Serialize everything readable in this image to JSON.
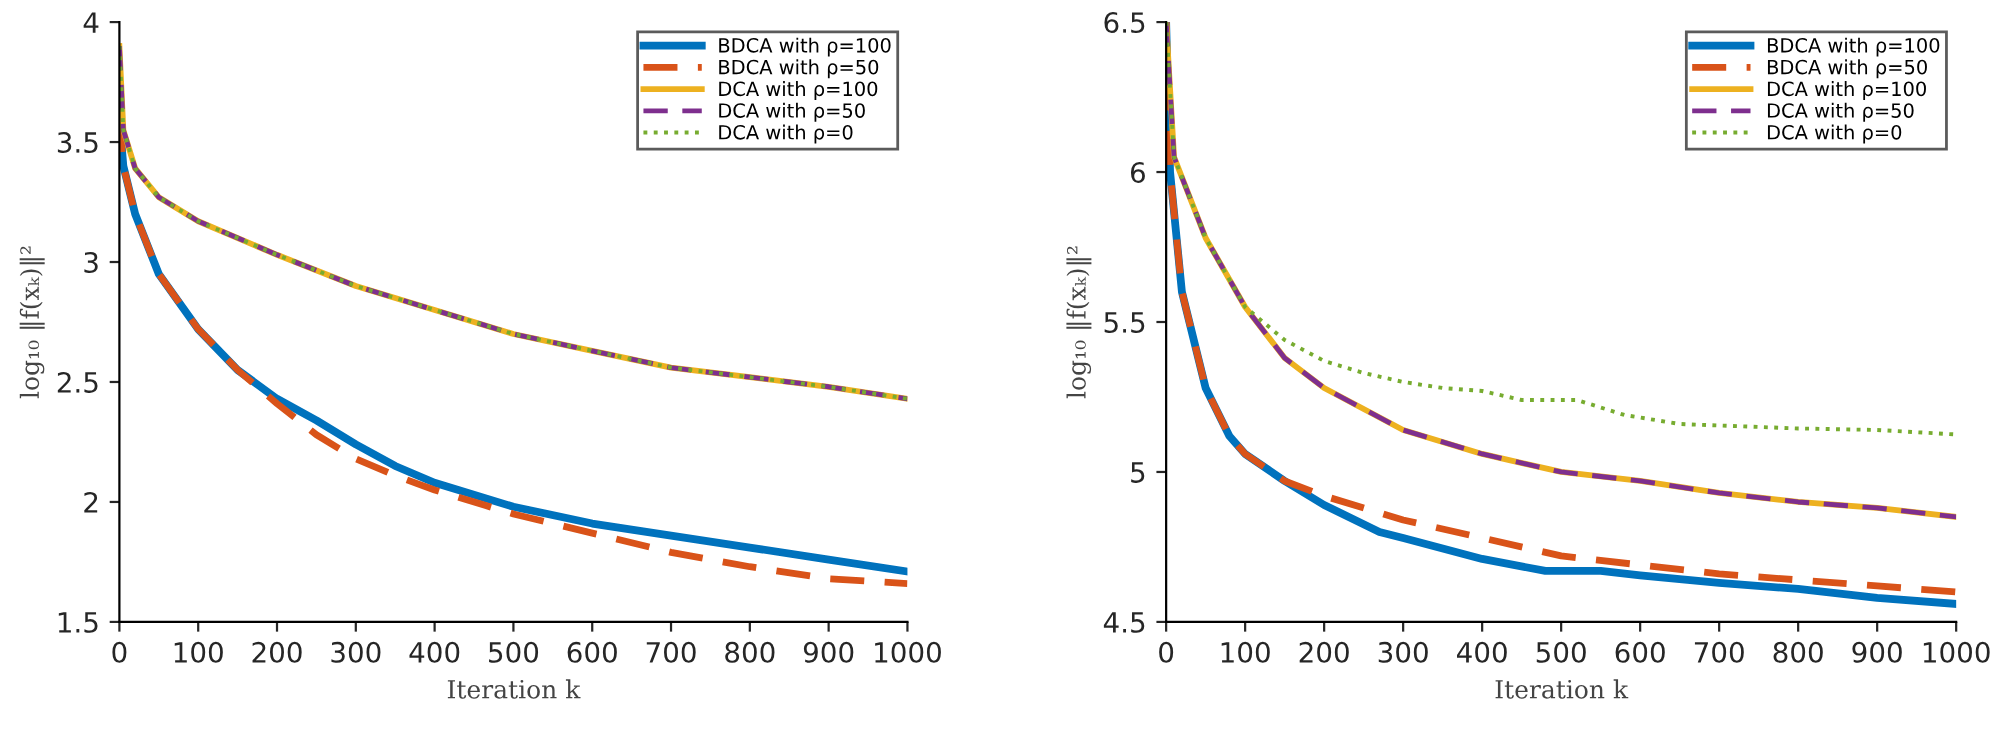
{
  "chart_data": [
    {
      "type": "line",
      "xlabel": "Iteration k",
      "ylabel": "log₁₀ ‖f(xₖ)‖²",
      "xlim": [
        0,
        1000
      ],
      "xticks": [
        0,
        100,
        200,
        300,
        400,
        500,
        600,
        700,
        800,
        900,
        1000
      ],
      "ylim": [
        1.5,
        4
      ],
      "yticks": [
        1.5,
        2,
        2.5,
        3,
        3.5,
        4
      ],
      "grid": false,
      "legend": "top right",
      "marker": "none",
      "series": [
        {
          "name": "BDCA with ρ=100",
          "color": "#0072bd",
          "line_style": "solid",
          "x": [
            0,
            5,
            20,
            50,
            100,
            150,
            200,
            250,
            300,
            350,
            400,
            500,
            600,
            700,
            800,
            900,
            1000
          ],
          "values": [
            3.6,
            3.4,
            3.2,
            2.95,
            2.72,
            2.55,
            2.43,
            2.34,
            2.24,
            2.15,
            2.08,
            1.98,
            1.91,
            1.86,
            1.81,
            1.76,
            1.71
          ]
        },
        {
          "name": "BDCA with ρ=50",
          "color": "#d95319",
          "line_style": "dashed",
          "x": [
            0,
            5,
            20,
            50,
            100,
            150,
            200,
            250,
            300,
            350,
            400,
            500,
            600,
            700,
            800,
            900,
            1000
          ],
          "values": [
            3.6,
            3.4,
            3.2,
            2.95,
            2.72,
            2.55,
            2.41,
            2.28,
            2.18,
            2.11,
            2.05,
            1.95,
            1.87,
            1.79,
            1.73,
            1.68,
            1.66
          ]
        },
        {
          "name": "DCA with ρ=100",
          "color": "#edb120",
          "line_style": "solid",
          "x": [
            0,
            5,
            20,
            50,
            100,
            200,
            300,
            400,
            500,
            600,
            700,
            800,
            900,
            1000
          ],
          "values": [
            3.9,
            3.55,
            3.39,
            3.27,
            3.17,
            3.03,
            2.9,
            2.8,
            2.7,
            2.63,
            2.56,
            2.52,
            2.48,
            2.43
          ]
        },
        {
          "name": "DCA with ρ=50",
          "color": "#7e2f8e",
          "line_style": "dashed",
          "x": [
            0,
            5,
            20,
            50,
            100,
            200,
            300,
            400,
            500,
            600,
            700,
            800,
            900,
            1000
          ],
          "values": [
            3.9,
            3.55,
            3.39,
            3.27,
            3.17,
            3.03,
            2.9,
            2.8,
            2.7,
            2.63,
            2.56,
            2.52,
            2.48,
            2.43
          ]
        },
        {
          "name": "DCA with ρ=0",
          "color": "#77ac30",
          "line_style": "dotted",
          "x": [
            0,
            5,
            20,
            50,
            100,
            200,
            300,
            400,
            500,
            600,
            700,
            800,
            900,
            1000
          ],
          "values": [
            3.9,
            3.55,
            3.39,
            3.27,
            3.17,
            3.03,
            2.9,
            2.8,
            2.7,
            2.63,
            2.56,
            2.52,
            2.48,
            2.43
          ]
        }
      ]
    },
    {
      "type": "line",
      "xlabel": "Iteration k",
      "ylabel": "log₁₀ ‖f(xₖ)‖²",
      "xlim": [
        0,
        1000
      ],
      "xticks": [
        0,
        100,
        200,
        300,
        400,
        500,
        600,
        700,
        800,
        900,
        1000
      ],
      "ylim": [
        4.5,
        6.5
      ],
      "yticks": [
        4.5,
        5,
        5.5,
        6,
        6.5
      ],
      "grid": false,
      "legend": "top right",
      "marker": "none",
      "series": [
        {
          "name": "BDCA with ρ=100",
          "color": "#0072bd",
          "line_style": "solid",
          "x": [
            0,
            5,
            20,
            50,
            80,
            100,
            150,
            200,
            270,
            300,
            400,
            480,
            550,
            600,
            700,
            800,
            900,
            1000
          ],
          "values": [
            6.5,
            6.0,
            5.6,
            5.28,
            5.12,
            5.06,
            4.97,
            4.89,
            4.8,
            4.78,
            4.71,
            4.67,
            4.67,
            4.655,
            4.63,
            4.61,
            4.58,
            4.56
          ]
        },
        {
          "name": "BDCA with ρ=50",
          "color": "#d95319",
          "line_style": "dashed",
          "x": [
            0,
            5,
            20,
            50,
            80,
            100,
            150,
            200,
            300,
            400,
            500,
            600,
            700,
            800,
            900,
            1000
          ],
          "values": [
            6.5,
            6.0,
            5.6,
            5.28,
            5.12,
            5.06,
            4.97,
            4.92,
            4.84,
            4.78,
            4.72,
            4.69,
            4.66,
            4.64,
            4.62,
            4.6
          ]
        },
        {
          "name": "DCA with ρ=100",
          "color": "#edb120",
          "line_style": "solid",
          "x": [
            0,
            10,
            50,
            100,
            150,
            200,
            300,
            400,
            500,
            600,
            700,
            800,
            900,
            1000
          ],
          "values": [
            6.5,
            6.05,
            5.78,
            5.55,
            5.38,
            5.28,
            5.14,
            5.06,
            5.0,
            4.97,
            4.93,
            4.9,
            4.88,
            4.85
          ]
        },
        {
          "name": "DCA with ρ=50",
          "color": "#7e2f8e",
          "line_style": "dashed",
          "x": [
            0,
            10,
            50,
            100,
            150,
            200,
            300,
            400,
            500,
            600,
            700,
            800,
            900,
            1000
          ],
          "values": [
            6.5,
            6.05,
            5.78,
            5.55,
            5.38,
            5.28,
            5.14,
            5.06,
            5.0,
            4.97,
            4.93,
            4.9,
            4.88,
            4.85
          ]
        },
        {
          "name": "DCA with ρ=0",
          "color": "#77ac30",
          "line_style": "dotted",
          "x": [
            0,
            10,
            50,
            100,
            150,
            200,
            250,
            300,
            350,
            400,
            450,
            520,
            580,
            650,
            700,
            800,
            900,
            1000
          ],
          "values": [
            6.5,
            6.05,
            5.78,
            5.55,
            5.44,
            5.37,
            5.33,
            5.3,
            5.28,
            5.27,
            5.24,
            5.24,
            5.19,
            5.16,
            5.155,
            5.145,
            5.14,
            5.125
          ]
        }
      ]
    }
  ]
}
